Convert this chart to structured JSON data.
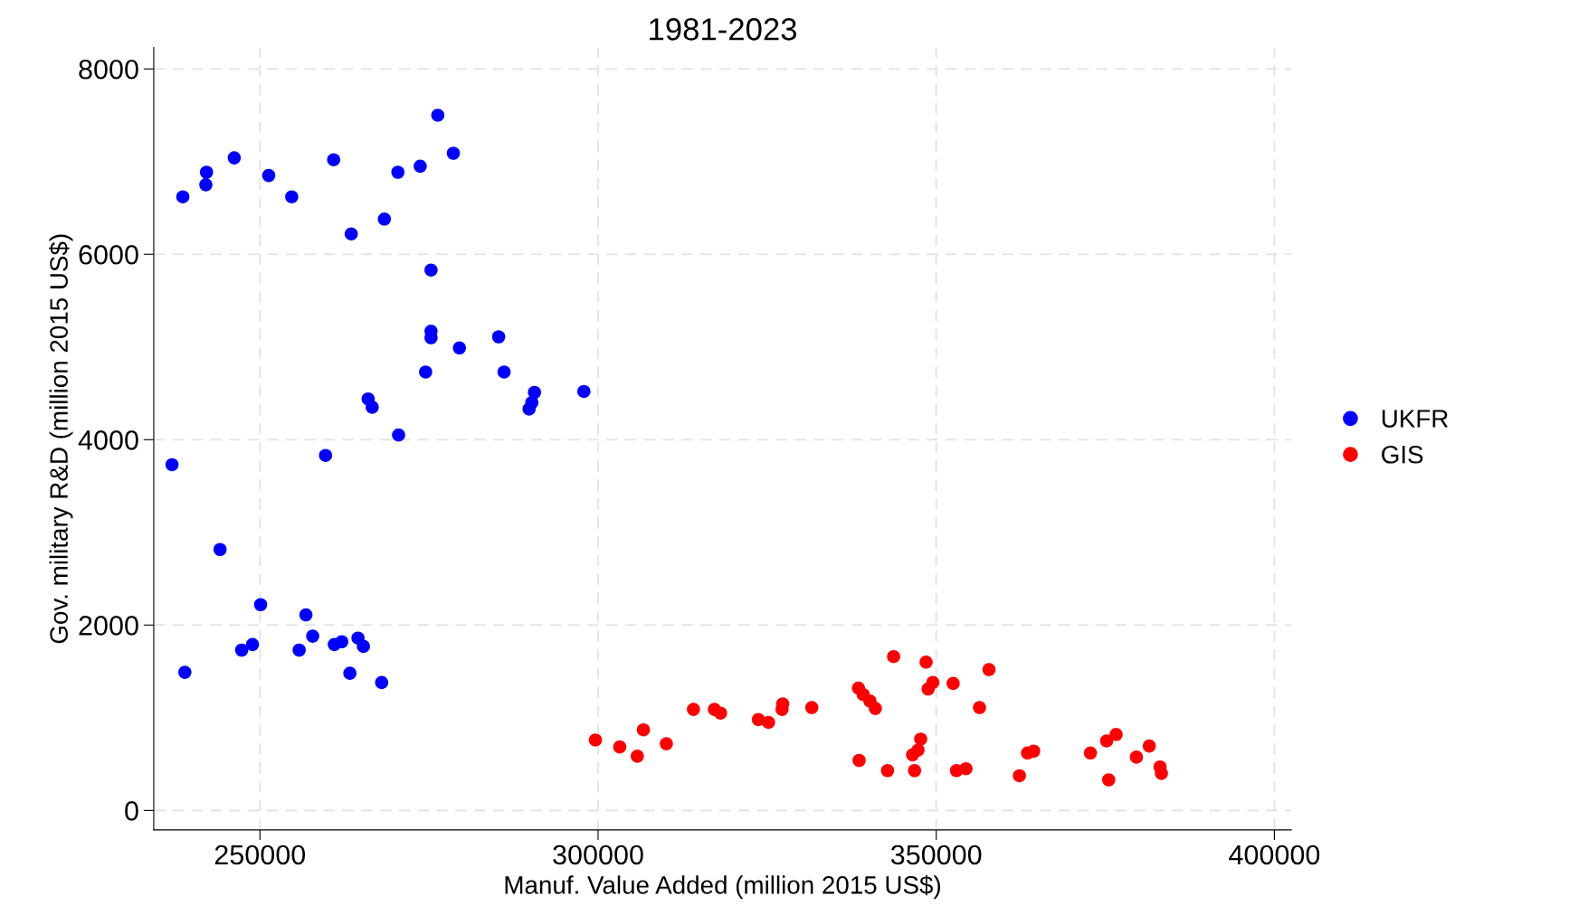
{
  "chart_data": {
    "type": "scatter",
    "title": "1981-2023",
    "xlabel": "Manuf. Value Added (million 2015 US$)",
    "ylabel": "Gov. military R&D (million 2015 US$)",
    "xlim": [
      234300,
      402500
    ],
    "ylim": [
      -210,
      8230
    ],
    "xticks": [
      250000,
      300000,
      350000,
      400000
    ],
    "yticks": [
      0,
      2000,
      4000,
      6000,
      8000
    ],
    "grid": true,
    "legend": "right",
    "marker": "circle",
    "series": [
      {
        "name": "UKFR",
        "color": "#0000ff",
        "x": [
          237000,
          238600,
          238900,
          242100,
          242000,
          244100,
          246200,
          247300,
          248900,
          250100,
          251300,
          254700,
          255800,
          256800,
          257800,
          259700,
          260900,
          261000,
          262100,
          263300,
          263500,
          264500,
          265300,
          266000,
          266600,
          268000,
          268400,
          270400,
          270500,
          273700,
          274500,
          275300,
          275300,
          275300,
          276300,
          278600,
          279500,
          285300,
          286100,
          289800,
          290200,
          290600,
          297900
        ],
        "values": [
          3730,
          6620,
          1490,
          6885,
          6750,
          2815,
          7040,
          1730,
          1790,
          2220,
          6850,
          6620,
          1730,
          2110,
          1880,
          3830,
          7020,
          1790,
          1820,
          1480,
          6220,
          1860,
          1770,
          4440,
          4350,
          1380,
          6380,
          6885,
          4050,
          6950,
          4730,
          5830,
          5170,
          5100,
          7500,
          7090,
          4990,
          5110,
          4730,
          4330,
          4400,
          4510,
          4520
        ]
      },
      {
        "name": "GIS",
        "color": "#ff0000",
        "x": [
          299600,
          303200,
          305800,
          306700,
          310100,
          314100,
          317200,
          318100,
          323700,
          325200,
          327200,
          327300,
          331600,
          338600,
          338500,
          339200,
          340200,
          341000,
          342800,
          343700,
          346500,
          346800,
          347300,
          347700,
          348500,
          348800,
          349500,
          352500,
          353000,
          354400,
          356400,
          357800,
          362300,
          363500,
          364400,
          372800,
          375200,
          375500,
          376600,
          379600,
          381500,
          383100,
          383300
        ],
        "values": [
          760,
          685,
          585,
          870,
          720,
          1090,
          1090,
          1050,
          980,
          950,
          1090,
          1150,
          1110,
          540,
          1320,
          1250,
          1180,
          1100,
          430,
          1660,
          600,
          430,
          650,
          770,
          1600,
          1310,
          1380,
          1370,
          430,
          450,
          1110,
          1520,
          375,
          620,
          640,
          620,
          750,
          330,
          820,
          575,
          695,
          470,
          400
        ]
      }
    ]
  }
}
